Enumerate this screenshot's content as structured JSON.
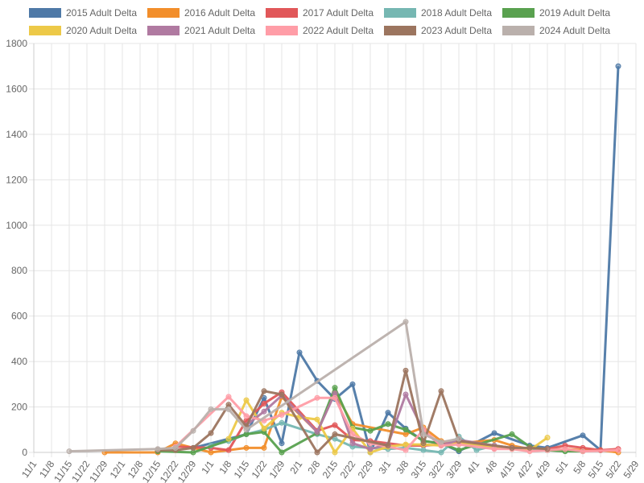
{
  "chart_data": {
    "type": "line",
    "title": "",
    "xlabel": "",
    "ylabel": "",
    "ylim": [
      0,
      1800
    ],
    "yticks": [
      0,
      200,
      400,
      600,
      800,
      1000,
      1200,
      1400,
      1600,
      1800
    ],
    "x_ticks": [
      "11/1",
      "11/8",
      "11/15",
      "11/22",
      "11/29",
      "12/1",
      "12/8",
      "12/15",
      "12/22",
      "12/29",
      "1/1",
      "1/8",
      "1/15",
      "1/22",
      "1/29",
      "2/1",
      "2/8",
      "2/15",
      "2/22",
      "2/29",
      "3/1",
      "3/8",
      "3/15",
      "3/22",
      "3/29",
      "4/1",
      "4/8",
      "4/15",
      "4/22",
      "4/29",
      "5/1",
      "5/8",
      "5/15",
      "5/22",
      "5/29"
    ],
    "grid": true,
    "legend_position": "top",
    "series": [
      {
        "name": "2015 Adult Delta",
        "color": "#4e79a7",
        "points": [
          [
            9,
            20
          ],
          [
            12,
            80
          ],
          [
            13,
            240
          ],
          [
            14,
            40
          ],
          [
            15,
            440
          ],
          [
            16,
            315
          ],
          [
            17,
            235
          ],
          [
            18,
            300
          ],
          [
            19,
            0
          ],
          [
            20,
            175
          ],
          [
            21,
            105
          ],
          [
            22,
            50
          ],
          [
            23,
            40
          ],
          [
            24,
            5
          ],
          [
            26,
            85
          ],
          [
            28,
            30
          ],
          [
            29,
            20
          ],
          [
            31,
            75
          ],
          [
            32,
            10
          ],
          [
            33,
            1700
          ]
        ]
      },
      {
        "name": "2016 Adult Delta",
        "color": "#f28e2b",
        "points": [
          [
            4,
            0
          ],
          [
            7,
            0
          ],
          [
            8,
            40
          ],
          [
            10,
            0
          ],
          [
            12,
            20
          ],
          [
            13,
            20
          ],
          [
            14,
            245
          ],
          [
            16,
            90
          ],
          [
            17,
            265
          ],
          [
            18,
            125
          ],
          [
            21,
            80
          ],
          [
            22,
            110
          ],
          [
            23,
            50
          ],
          [
            24,
            40
          ],
          [
            26,
            55
          ],
          [
            27,
            30
          ],
          [
            28,
            15
          ],
          [
            29,
            10
          ],
          [
            30,
            15
          ],
          [
            31,
            10
          ],
          [
            32,
            10
          ],
          [
            33,
            0
          ]
        ]
      },
      {
        "name": "2017 Adult Delta",
        "color": "#e15759",
        "points": [
          [
            8,
            25
          ],
          [
            10,
            20
          ],
          [
            11,
            10
          ],
          [
            12,
            140
          ],
          [
            13,
            215
          ],
          [
            14,
            265
          ],
          [
            16,
            95
          ],
          [
            17,
            120
          ],
          [
            18,
            55
          ],
          [
            19,
            50
          ],
          [
            21,
            30
          ],
          [
            22,
            30
          ],
          [
            23,
            35
          ],
          [
            24,
            50
          ],
          [
            26,
            20
          ],
          [
            27,
            20
          ],
          [
            29,
            15
          ],
          [
            30,
            30
          ],
          [
            31,
            20
          ],
          [
            32,
            10
          ],
          [
            33,
            15
          ]
        ]
      },
      {
        "name": "2018 Adult Delta",
        "color": "#76b7b2",
        "points": [
          [
            10,
            30
          ],
          [
            11,
            50
          ],
          [
            12,
            80
          ],
          [
            13,
            100
          ],
          [
            14,
            130
          ],
          [
            16,
            80
          ],
          [
            17,
            60
          ],
          [
            18,
            25
          ],
          [
            19,
            20
          ],
          [
            20,
            15
          ],
          [
            21,
            20
          ],
          [
            22,
            10
          ],
          [
            23,
            0
          ],
          [
            24,
            70
          ],
          [
            25,
            10
          ],
          [
            26,
            30
          ],
          [
            27,
            20
          ],
          [
            28,
            15
          ],
          [
            29,
            10
          ]
        ]
      },
      {
        "name": "2019 Adult Delta",
        "color": "#59a14f",
        "points": [
          [
            7,
            5
          ],
          [
            9,
            0
          ],
          [
            12,
            80
          ],
          [
            13,
            90
          ],
          [
            14,
            0
          ],
          [
            16,
            85
          ],
          [
            17,
            285
          ],
          [
            18,
            110
          ],
          [
            19,
            95
          ],
          [
            20,
            125
          ],
          [
            21,
            100
          ],
          [
            22,
            50
          ],
          [
            23,
            40
          ],
          [
            24,
            10
          ],
          [
            27,
            80
          ],
          [
            28,
            25
          ],
          [
            29,
            10
          ],
          [
            30,
            5
          ],
          [
            31,
            5
          ]
        ]
      },
      {
        "name": "2020 Adult Delta",
        "color": "#edc948",
        "points": [
          [
            11,
            60
          ],
          [
            12,
            230
          ],
          [
            13,
            105
          ],
          [
            14,
            175
          ],
          [
            15,
            155
          ],
          [
            16,
            145
          ],
          [
            17,
            0
          ],
          [
            18,
            105
          ],
          [
            19,
            0
          ],
          [
            20,
            25
          ],
          [
            21,
            35
          ],
          [
            22,
            35
          ],
          [
            23,
            30
          ],
          [
            24,
            40
          ],
          [
            26,
            25
          ],
          [
            27,
            15
          ],
          [
            28,
            10
          ],
          [
            29,
            65
          ]
        ]
      },
      {
        "name": "2021 Adult Delta",
        "color": "#b07aa1",
        "points": [
          [
            12,
            120
          ],
          [
            13,
            180
          ],
          [
            14,
            250
          ],
          [
            16,
            90
          ],
          [
            17,
            260
          ],
          [
            18,
            40
          ],
          [
            19,
            15
          ],
          [
            20,
            35
          ],
          [
            21,
            255
          ],
          [
            22,
            95
          ],
          [
            23,
            30
          ],
          [
            24,
            55
          ],
          [
            26,
            30
          ],
          [
            27,
            20
          ]
        ]
      },
      {
        "name": "2022 Adult Delta",
        "color": "#ff9da7",
        "points": [
          [
            8,
            25
          ],
          [
            11,
            245
          ],
          [
            12,
            160
          ],
          [
            13,
            140
          ],
          [
            14,
            165
          ],
          [
            16,
            240
          ],
          [
            17,
            240
          ],
          [
            18,
            80
          ],
          [
            19,
            40
          ],
          [
            21,
            10
          ],
          [
            22,
            100
          ],
          [
            23,
            30
          ],
          [
            24,
            35
          ],
          [
            26,
            15
          ],
          [
            27,
            15
          ],
          [
            28,
            5
          ],
          [
            29,
            10
          ],
          [
            30,
            15
          ],
          [
            31,
            5
          ],
          [
            33,
            10
          ]
        ]
      },
      {
        "name": "2023 Adult Delta",
        "color": "#9c755f",
        "points": [
          [
            7,
            10
          ],
          [
            8,
            10
          ],
          [
            9,
            20
          ],
          [
            10,
            85
          ],
          [
            11,
            210
          ],
          [
            12,
            115
          ],
          [
            13,
            270
          ],
          [
            14,
            255
          ],
          [
            16,
            0
          ],
          [
            17,
            80
          ],
          [
            20,
            30
          ],
          [
            21,
            360
          ],
          [
            22,
            40
          ],
          [
            23,
            270
          ],
          [
            24,
            50
          ],
          [
            27,
            20
          ],
          [
            28,
            20
          ],
          [
            29,
            15
          ]
        ]
      },
      {
        "name": "2024 Adult Delta",
        "color": "#bab0ac",
        "points": [
          [
            2,
            5
          ],
          [
            7,
            15
          ],
          [
            8,
            20
          ],
          [
            9,
            95
          ],
          [
            10,
            190
          ],
          [
            11,
            190
          ],
          [
            12,
            100
          ],
          [
            21,
            575
          ],
          [
            22,
            80
          ],
          [
            23,
            45
          ],
          [
            24,
            60
          ]
        ]
      }
    ]
  }
}
